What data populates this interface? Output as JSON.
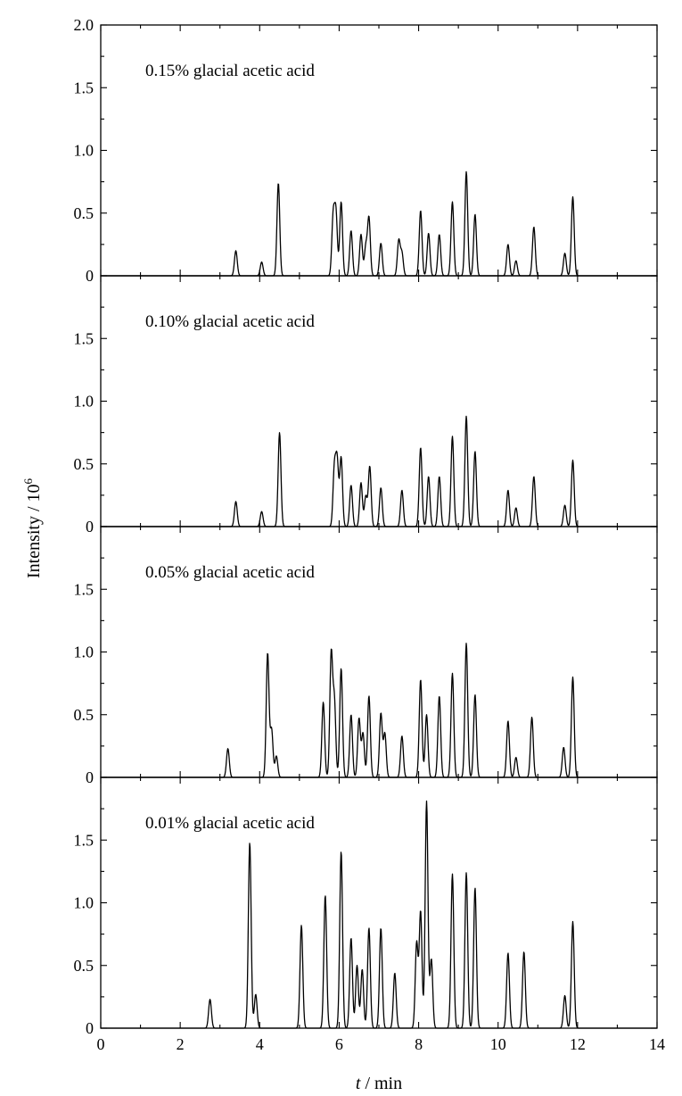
{
  "chart_data": {
    "type": "line",
    "title": "",
    "xlabel_italic": "t",
    "xlabel_rest": " / min",
    "ylabel_base": "Intensity / 10",
    "ylabel_exp": "6",
    "xlim": [
      0,
      14
    ],
    "x_ticks": [
      0,
      2,
      4,
      6,
      8,
      10,
      12,
      14
    ],
    "x_tick_labels": [
      "0",
      "2",
      "4",
      "6",
      "8",
      "10",
      "12",
      "14"
    ],
    "ylim": [
      0,
      2.0
    ],
    "y_ticks": [
      0,
      0.5,
      1.0,
      1.5,
      2.0
    ],
    "y_tick_labels": [
      "0",
      "0.5",
      "1.0",
      "1.5",
      "2.0"
    ],
    "peak_width_min": 0.035,
    "panels": [
      {
        "name": "0.15% glacial acetic acid",
        "label": "0.15% glacial acetic acid",
        "peaks": [
          [
            3.4,
            0.2
          ],
          [
            4.05,
            0.11
          ],
          [
            4.47,
            0.74
          ],
          [
            5.85,
            0.47
          ],
          [
            5.92,
            0.49
          ],
          [
            6.05,
            0.59
          ],
          [
            6.3,
            0.36
          ],
          [
            6.55,
            0.33
          ],
          [
            6.67,
            0.23
          ],
          [
            6.75,
            0.46
          ],
          [
            7.05,
            0.26
          ],
          [
            7.5,
            0.28
          ],
          [
            7.58,
            0.18
          ],
          [
            8.05,
            0.52
          ],
          [
            8.25,
            0.34
          ],
          [
            8.52,
            0.33
          ],
          [
            8.85,
            0.59
          ],
          [
            9.2,
            0.83
          ],
          [
            9.42,
            0.49
          ],
          [
            10.25,
            0.25
          ],
          [
            10.45,
            0.12
          ],
          [
            10.9,
            0.39
          ],
          [
            11.68,
            0.18
          ],
          [
            11.88,
            0.63
          ]
        ]
      },
      {
        "name": "0.10% glacial acetic acid",
        "label": "0.10% glacial acetic acid",
        "peaks": [
          [
            3.4,
            0.2
          ],
          [
            4.05,
            0.12
          ],
          [
            4.5,
            0.75
          ],
          [
            5.88,
            0.46
          ],
          [
            5.95,
            0.51
          ],
          [
            6.05,
            0.55
          ],
          [
            6.3,
            0.33
          ],
          [
            6.55,
            0.35
          ],
          [
            6.67,
            0.24
          ],
          [
            6.77,
            0.48
          ],
          [
            7.05,
            0.31
          ],
          [
            7.58,
            0.29
          ],
          [
            8.05,
            0.63
          ],
          [
            8.25,
            0.4
          ],
          [
            8.52,
            0.4
          ],
          [
            8.85,
            0.72
          ],
          [
            9.2,
            0.88
          ],
          [
            9.42,
            0.6
          ],
          [
            10.25,
            0.29
          ],
          [
            10.45,
            0.15
          ],
          [
            10.9,
            0.4
          ],
          [
            11.68,
            0.17
          ],
          [
            11.88,
            0.53
          ]
        ]
      },
      {
        "name": "0.05% glacial acetic acid",
        "label": "0.05% glacial acetic acid",
        "peaks": [
          [
            3.2,
            0.23
          ],
          [
            4.2,
            0.99
          ],
          [
            4.3,
            0.38
          ],
          [
            4.42,
            0.17
          ],
          [
            5.6,
            0.6
          ],
          [
            5.8,
            0.98
          ],
          [
            5.88,
            0.6
          ],
          [
            6.05,
            0.87
          ],
          [
            6.3,
            0.5
          ],
          [
            6.5,
            0.47
          ],
          [
            6.6,
            0.35
          ],
          [
            6.75,
            0.65
          ],
          [
            7.05,
            0.51
          ],
          [
            7.15,
            0.35
          ],
          [
            7.58,
            0.33
          ],
          [
            8.05,
            0.78
          ],
          [
            8.2,
            0.5
          ],
          [
            8.52,
            0.65
          ],
          [
            8.85,
            0.83
          ],
          [
            9.2,
            1.07
          ],
          [
            9.42,
            0.66
          ],
          [
            10.25,
            0.45
          ],
          [
            10.45,
            0.16
          ],
          [
            10.85,
            0.48
          ],
          [
            11.65,
            0.24
          ],
          [
            11.88,
            0.8
          ]
        ]
      },
      {
        "name": "0.01% glacial acetic acid",
        "label": "0.01% glacial acetic acid",
        "peaks": [
          [
            2.75,
            0.23
          ],
          [
            3.75,
            1.48
          ],
          [
            3.9,
            0.27
          ],
          [
            5.05,
            0.82
          ],
          [
            5.65,
            1.06
          ],
          [
            6.05,
            1.41
          ],
          [
            6.3,
            0.72
          ],
          [
            6.45,
            0.5
          ],
          [
            6.58,
            0.47
          ],
          [
            6.75,
            0.8
          ],
          [
            7.05,
            0.8
          ],
          [
            7.4,
            0.44
          ],
          [
            7.95,
            0.68
          ],
          [
            8.05,
            0.93
          ],
          [
            8.2,
            1.81
          ],
          [
            8.32,
            0.55
          ],
          [
            8.85,
            1.23
          ],
          [
            9.2,
            1.24
          ],
          [
            9.42,
            1.12
          ],
          [
            10.25,
            0.6
          ],
          [
            10.65,
            0.61
          ],
          [
            11.68,
            0.26
          ],
          [
            11.88,
            0.85
          ]
        ]
      }
    ]
  }
}
